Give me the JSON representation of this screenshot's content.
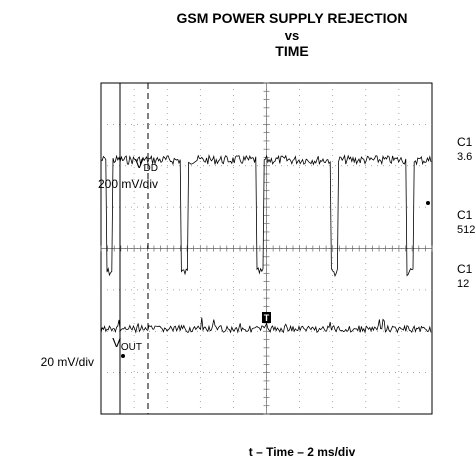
{
  "header": {
    "title": "GSM POWER SUPPLY REJECTION",
    "line2": "vs",
    "line3": "TIME"
  },
  "channels": [
    {
      "label": "V",
      "subscript": "DD",
      "scale": "200 mV/div"
    },
    {
      "label": "V",
      "subscript": "OUT",
      "scale": "20 mV/div"
    }
  ],
  "readouts": [
    [
      "C1",
      "3.6"
    ],
    [
      "C1",
      "512"
    ],
    [
      "C1",
      "12"
    ]
  ],
  "trigger_marker": "T",
  "x_axis_label": "t – Time – 2 ms/div"
}
